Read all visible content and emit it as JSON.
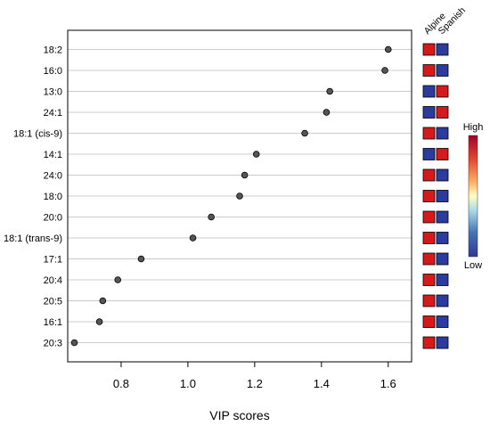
{
  "chart_data": {
    "type": "scatter",
    "xlabel": "VIP scores",
    "xlim": [
      0.64,
      1.67
    ],
    "xticks": [
      "0.8",
      "1.0",
      "1.2",
      "1.4",
      "1.6"
    ],
    "xtick_values": [
      0.8,
      1.0,
      1.2,
      1.4,
      1.6
    ],
    "grid": true,
    "categories": [
      "18:2",
      "16:0",
      "13:0",
      "24:1",
      "18:1 (cis-9)",
      "14:1",
      "24:0",
      "18:0",
      "20:0",
      "18:1 (trans-9)",
      "17:1",
      "20:4",
      "20:5",
      "16:1",
      "20:3"
    ],
    "values": [
      1.6,
      1.59,
      1.425,
      1.415,
      1.35,
      1.205,
      1.17,
      1.155,
      1.07,
      1.015,
      0.86,
      0.79,
      0.745,
      0.735,
      0.66
    ],
    "groups": [
      "Alpine",
      "Spanish"
    ],
    "heat": [
      [
        "High",
        "Low"
      ],
      [
        "High",
        "Low"
      ],
      [
        "Low",
        "High"
      ],
      [
        "Low",
        "High"
      ],
      [
        "High",
        "Low"
      ],
      [
        "Low",
        "High"
      ],
      [
        "High",
        "Low"
      ],
      [
        "High",
        "Low"
      ],
      [
        "High",
        "Low"
      ],
      [
        "High",
        "Low"
      ],
      [
        "High",
        "Low"
      ],
      [
        "High",
        "Low"
      ],
      [
        "High",
        "Low"
      ],
      [
        "High",
        "Low"
      ],
      [
        "High",
        "Low"
      ]
    ],
    "legend": {
      "high_label": "High",
      "low_label": "Low",
      "placement": "right"
    },
    "colors": {
      "high": "#d7191c",
      "low": "#2c3b9e",
      "point": "#555555",
      "grid": "#cccccc"
    }
  }
}
